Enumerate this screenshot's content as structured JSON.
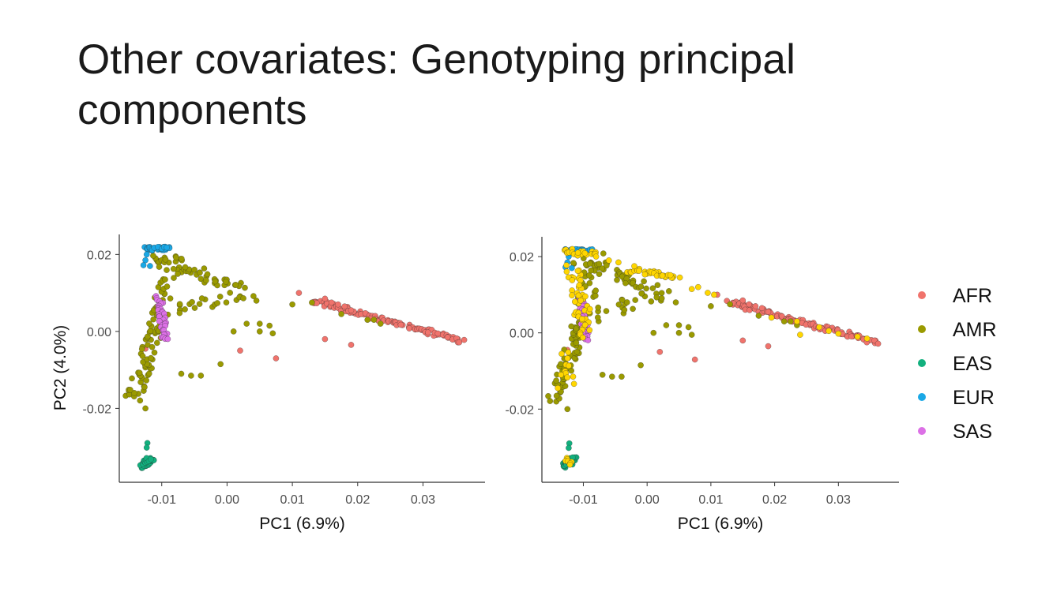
{
  "slide": {
    "title_line1": "Other covariates: Genotyping principal",
    "title_line2": "components"
  },
  "colors": {
    "AFR": "#F0736C",
    "AMR": "#9A9A00",
    "EAS": "#12B07E",
    "EUR": "#1AA8E6",
    "SAS": "#DC70E6",
    "highlight": "#FFD600",
    "axis": "#333333",
    "tick_text": "#4D4D4D"
  },
  "chart_data": [
    {
      "type": "scatter",
      "xlabel": "PC1 (6.9%)",
      "ylabel": "PC2 (4.0%)",
      "xlim": [
        -0.0165,
        0.0395
      ],
      "ylim": [
        -0.0392,
        0.0252
      ],
      "xticks": [
        -0.01,
        0.0,
        0.01,
        0.02,
        0.03
      ],
      "xtick_labels": [
        "-0.01",
        "0.00",
        "0.01",
        "0.02",
        "0.03"
      ],
      "yticks": [
        -0.02,
        0.0,
        0.02
      ],
      "ytick_labels": [
        "-0.02",
        "0.00",
        "0.02"
      ],
      "grid": false,
      "series": [
        {
          "name": "AFR",
          "segments": [
            {
              "from": [
                0.013,
                0.008
              ],
              "to": [
                0.036,
                -0.0025
              ],
              "n": 110,
              "spread": 0.0006
            }
          ],
          "points": [
            [
              0.011,
              0.01
            ],
            [
              0.015,
              0.0085
            ],
            [
              0.016,
              0.0075
            ],
            [
              0.017,
              0.007
            ],
            [
              0.018,
              0.0065
            ],
            [
              0.019,
              0.0055
            ],
            [
              0.015,
              -0.002
            ],
            [
              0.019,
              -0.0035
            ],
            [
              0.002,
              -0.005
            ],
            [
              0.0075,
              -0.007
            ],
            [
              -0.0125,
              -0.0045
            ]
          ]
        },
        {
          "name": "AMR",
          "segments": [
            {
              "from": [
                -0.0145,
                -0.0175
              ],
              "to": [
                -0.0105,
                0.002
              ],
              "n": 55,
              "spread": 0.0012
            },
            {
              "from": [
                -0.011,
                0.0195
              ],
              "to": [
                0.001,
                0.011
              ],
              "n": 45,
              "spread": 0.0014
            },
            {
              "from": [
                -0.011,
                0.0
              ],
              "to": [
                -0.008,
                0.0195
              ],
              "n": 35,
              "spread": 0.0014
            },
            {
              "from": [
                -0.008,
                0.004
              ],
              "to": [
                0.003,
                0.011
              ],
              "n": 25,
              "spread": 0.002
            }
          ],
          "points": [
            [
              -0.0125,
              -0.02
            ],
            [
              -0.007,
              -0.011
            ],
            [
              -0.0055,
              -0.0115
            ],
            [
              -0.004,
              -0.0115
            ],
            [
              -0.001,
              -0.0085
            ],
            [
              0.001,
              0.0
            ],
            [
              0.003,
              0.002
            ],
            [
              0.005,
              0.002
            ],
            [
              0.005,
              0.0
            ],
            [
              0.0065,
              0.0015
            ],
            [
              0.007,
              -0.0005
            ],
            [
              0.0045,
              0.008
            ],
            [
              0.01,
              0.007
            ],
            [
              0.013,
              0.0075
            ],
            [
              0.0175,
              0.0045
            ],
            [
              0.0215,
              0.003
            ],
            [
              0.0235,
              0.002
            ],
            [
              0.0225,
              0.003
            ]
          ]
        },
        {
          "name": "EAS",
          "segments": [
            {
              "from": [
                -0.013,
                -0.035
              ],
              "to": [
                -0.0115,
                -0.033
              ],
              "n": 40,
              "spread": 0.0006
            }
          ],
          "points": [
            [
              -0.0122,
              -0.029
            ],
            [
              -0.0123,
              -0.0302
            ]
          ]
        },
        {
          "name": "EUR",
          "segments": [
            {
              "from": [
                -0.0125,
                0.0215
              ],
              "to": [
                -0.009,
                0.0215
              ],
              "n": 35,
              "spread": 0.0005
            }
          ],
          "points": [
            [
              -0.0125,
              0.0185
            ],
            [
              -0.0128,
              0.0172
            ],
            [
              -0.0118,
              0.017
            ],
            [
              -0.0123,
              0.02
            ]
          ]
        },
        {
          "name": "SAS",
          "segments": [
            {
              "from": [
                -0.0104,
                0.009
              ],
              "to": [
                -0.0095,
                -0.002
              ],
              "n": 40,
              "spread": 0.0005
            }
          ],
          "points": []
        }
      ]
    },
    {
      "type": "scatter",
      "xlabel": "PC1 (6.9%)",
      "ylabel": "",
      "xlim": [
        -0.0165,
        0.0395
      ],
      "ylim": [
        -0.0392,
        0.0252
      ],
      "xticks": [
        -0.01,
        0.0,
        0.01,
        0.02,
        0.03
      ],
      "xtick_labels": [
        "-0.01",
        "0.00",
        "0.01",
        "0.02",
        "0.03"
      ],
      "yticks": [
        -0.02,
        0.0,
        0.02
      ],
      "ytick_labels": [
        "-0.02",
        "0.00",
        "0.02"
      ],
      "grid": false,
      "series": [
        {
          "name": "AFR",
          "segments": [
            {
              "from": [
                0.013,
                0.008
              ],
              "to": [
                0.036,
                -0.0025
              ],
              "n": 110,
              "spread": 0.0006
            }
          ],
          "points": [
            [
              0.011,
              0.01
            ],
            [
              0.015,
              0.0085
            ],
            [
              0.016,
              0.0075
            ],
            [
              0.017,
              0.007
            ],
            [
              0.018,
              0.0065
            ],
            [
              0.019,
              0.0055
            ],
            [
              0.015,
              -0.002
            ],
            [
              0.019,
              -0.0035
            ],
            [
              0.002,
              -0.005
            ],
            [
              0.0075,
              -0.007
            ],
            [
              -0.0125,
              -0.0045
            ]
          ]
        },
        {
          "name": "AMR",
          "segments": [
            {
              "from": [
                -0.0145,
                -0.0175
              ],
              "to": [
                -0.0105,
                0.002
              ],
              "n": 55,
              "spread": 0.0012
            },
            {
              "from": [
                -0.011,
                0.0195
              ],
              "to": [
                0.001,
                0.011
              ],
              "n": 45,
              "spread": 0.0014
            },
            {
              "from": [
                -0.011,
                0.0
              ],
              "to": [
                -0.008,
                0.0195
              ],
              "n": 35,
              "spread": 0.0014
            },
            {
              "from": [
                -0.008,
                0.004
              ],
              "to": [
                0.003,
                0.011
              ],
              "n": 25,
              "spread": 0.002
            }
          ],
          "points": [
            [
              -0.0125,
              -0.02
            ],
            [
              -0.007,
              -0.011
            ],
            [
              -0.0055,
              -0.0115
            ],
            [
              -0.004,
              -0.0115
            ],
            [
              -0.001,
              -0.0085
            ],
            [
              0.001,
              0.0
            ],
            [
              0.003,
              0.002
            ],
            [
              0.005,
              0.002
            ],
            [
              0.005,
              0.0
            ],
            [
              0.0065,
              0.0015
            ],
            [
              0.007,
              -0.0005
            ],
            [
              0.0045,
              0.008
            ],
            [
              0.01,
              0.007
            ],
            [
              0.013,
              0.0075
            ],
            [
              0.0175,
              0.0045
            ],
            [
              0.0215,
              0.003
            ],
            [
              0.0235,
              0.002
            ],
            [
              0.0225,
              0.003
            ]
          ]
        },
        {
          "name": "EAS",
          "segments": [
            {
              "from": [
                -0.013,
                -0.035
              ],
              "to": [
                -0.0115,
                -0.033
              ],
              "n": 40,
              "spread": 0.0006
            }
          ],
          "points": [
            [
              -0.0122,
              -0.029
            ],
            [
              -0.0123,
              -0.0302
            ]
          ]
        },
        {
          "name": "EUR",
          "segments": [
            {
              "from": [
                -0.0125,
                0.0215
              ],
              "to": [
                -0.009,
                0.0215
              ],
              "n": 35,
              "spread": 0.0005
            }
          ],
          "points": [
            [
              -0.0125,
              0.0185
            ],
            [
              -0.0128,
              0.0172
            ],
            [
              -0.0118,
              0.017
            ],
            [
              -0.0123,
              0.02
            ]
          ]
        },
        {
          "name": "SAS",
          "segments": [
            {
              "from": [
                -0.0104,
                0.009
              ],
              "to": [
                -0.0095,
                -0.002
              ],
              "n": 40,
              "spread": 0.0005
            }
          ],
          "points": []
        },
        {
          "name": "highlight",
          "segments": [
            {
              "from": [
                -0.0125,
                0.0215
              ],
              "to": [
                -0.0085,
                0.0205
              ],
              "n": 20,
              "spread": 0.0008
            },
            {
              "from": [
                -0.0025,
                0.0165
              ],
              "to": [
                0.0045,
                0.0145
              ],
              "n": 35,
              "spread": 0.0007
            },
            {
              "from": [
                -0.0115,
                0.017
              ],
              "to": [
                -0.0095,
                -0.0005
              ],
              "n": 45,
              "spread": 0.0014
            },
            {
              "from": [
                -0.013,
                -0.005
              ],
              "to": [
                -0.012,
                -0.013
              ],
              "n": 10,
              "spread": 0.0008
            },
            {
              "from": [
                -0.0128,
                -0.033
              ],
              "to": [
                -0.012,
                -0.0345
              ],
              "n": 8,
              "spread": 0.0005
            }
          ],
          "points": [
            [
              -0.008,
              0.02
            ],
            [
              -0.006,
              0.019
            ],
            [
              -0.0045,
              0.0185
            ],
            [
              -0.002,
              0.0175
            ],
            [
              0.007,
              0.0115
            ],
            [
              0.008,
              0.012
            ],
            [
              0.0095,
              0.0105
            ],
            [
              0.0105,
              0.01
            ],
            [
              0.0235,
              0.003
            ],
            [
              0.027,
              0.0015
            ],
            [
              0.024,
              -0.0005
            ],
            [
              0.03,
              -0.0002
            ],
            [
              0.0285,
              0.0005
            ],
            [
              0.033,
              -0.001
            ],
            [
              0.0345,
              -0.0015
            ],
            [
              0.0195,
              0.004
            ],
            [
              -0.014,
              -0.0145
            ],
            [
              -0.0135,
              -0.011
            ]
          ]
        }
      ]
    }
  ],
  "legend": {
    "placement": "right",
    "items": [
      {
        "label": "AFR",
        "key": "AFR"
      },
      {
        "label": "AMR",
        "key": "AMR"
      },
      {
        "label": "EAS",
        "key": "EAS"
      },
      {
        "label": "EUR",
        "key": "EUR"
      },
      {
        "label": "SAS",
        "key": "SAS"
      }
    ]
  }
}
